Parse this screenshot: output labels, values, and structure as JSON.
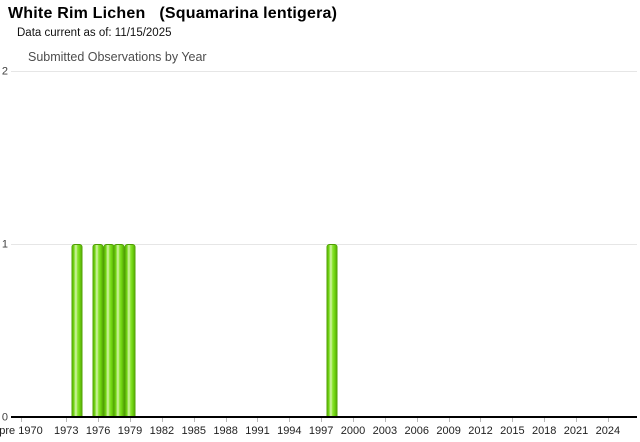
{
  "header": {
    "title": "White Rim Lichen   (Squamarina lentigera)",
    "data_current": "Data current as of: 11/15/2025"
  },
  "chart_data": {
    "type": "bar",
    "title": "Submitted Observations by Year",
    "x": [
      1974,
      1976,
      1977,
      1978,
      1979,
      1998
    ],
    "values": [
      1,
      1,
      1,
      1,
      1,
      1
    ],
    "xlabel": "",
    "ylabel": "",
    "ylim": [
      0,
      2
    ],
    "x_tick_labels": [
      "pre 1970",
      "1973",
      "1976",
      "1979",
      "1982",
      "1985",
      "1988",
      "1991",
      "1994",
      "1997",
      "2000",
      "2003",
      "2006",
      "2009",
      "2012",
      "2015",
      "2018",
      "2021",
      "2024"
    ],
    "y_tick_labels": [
      "0",
      "1",
      "2"
    ],
    "grid": "horizontal gridlines at y=1 and y=2",
    "legend": "none",
    "bar_style": "glossy green vertical cylinder gradient"
  },
  "colors": {
    "bar_edge": "#4e9b04",
    "bar_bright": "#6fd410",
    "bar_bright2": "#8ae42f",
    "bar_highlight": "#d5f4ab",
    "gridline": "#e6e6e6",
    "axis": "#000000",
    "tick": "#b8b8b8",
    "title_text": "#000000",
    "chart_title_text": "#4d4d4d",
    "axis_label_text": "#1f1f1f"
  }
}
